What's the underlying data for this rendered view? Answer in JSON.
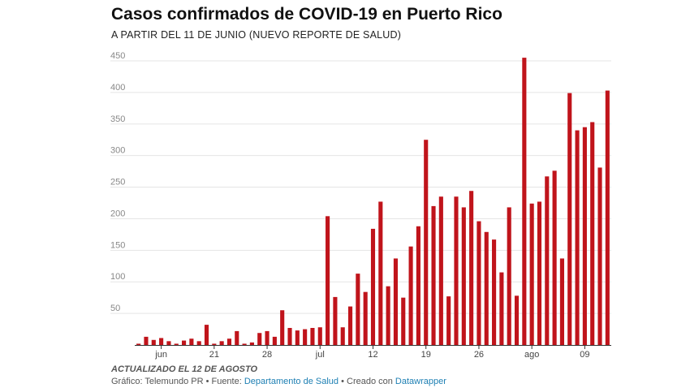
{
  "header": {
    "title": "Casos confirmados de COVID-19 en Puerto Rico",
    "subtitle": "A PARTIR DEL 11 DE JUNIO (NUEVO REPORTE DE SALUD)"
  },
  "footer": {
    "notes": "ACTUALIZADO EL 12 DE AGOSTO",
    "credit_prefix": "Gráfico: Telemundo PR • Fuente: ",
    "source_link": "Departamento de Salud",
    "credit_middle": " • Creado con ",
    "tool_link": "Datawrapper"
  },
  "colors": {
    "bar": "#c0141b",
    "grid": "#e5e5e5",
    "link": "#1d7fb3"
  },
  "chart_data": {
    "type": "bar",
    "title": "Casos confirmados de COVID-19 en Puerto Rico",
    "subtitle": "A PARTIR DEL 11 DE JUNIO (NUEVO REPORTE DE SALUD)",
    "xlabel": "",
    "ylabel": "",
    "ylim": [
      0,
      450
    ],
    "yticks": [
      0,
      50,
      100,
      150,
      200,
      250,
      300,
      350,
      400,
      450
    ],
    "ytick_labels": [
      "",
      "50",
      "100",
      "150",
      "200",
      "250",
      "300",
      "350",
      "400",
      "450"
    ],
    "grid": true,
    "x_tick_labels": [
      {
        "date": "2020-06-14",
        "label": "jun"
      },
      {
        "date": "2020-06-21",
        "label": "21"
      },
      {
        "date": "2020-06-28",
        "label": "28"
      },
      {
        "date": "2020-07-05",
        "label": "jul"
      },
      {
        "date": "2020-07-12",
        "label": "12"
      },
      {
        "date": "2020-07-19",
        "label": "19"
      },
      {
        "date": "2020-07-26",
        "label": "26"
      },
      {
        "date": "2020-08-02",
        "label": "ago"
      },
      {
        "date": "2020-08-09",
        "label": "09"
      }
    ],
    "dates": [
      "2020-06-11",
      "2020-06-12",
      "2020-06-13",
      "2020-06-14",
      "2020-06-15",
      "2020-06-16",
      "2020-06-17",
      "2020-06-18",
      "2020-06-19",
      "2020-06-20",
      "2020-06-21",
      "2020-06-22",
      "2020-06-23",
      "2020-06-24",
      "2020-06-25",
      "2020-06-26",
      "2020-06-27",
      "2020-06-28",
      "2020-06-29",
      "2020-06-30",
      "2020-07-01",
      "2020-07-02",
      "2020-07-03",
      "2020-07-04",
      "2020-07-05",
      "2020-07-06",
      "2020-07-07",
      "2020-07-08",
      "2020-07-09",
      "2020-07-10",
      "2020-07-11",
      "2020-07-12",
      "2020-07-13",
      "2020-07-14",
      "2020-07-15",
      "2020-07-16",
      "2020-07-17",
      "2020-07-18",
      "2020-07-19",
      "2020-07-20",
      "2020-07-21",
      "2020-07-22",
      "2020-07-23",
      "2020-07-24",
      "2020-07-25",
      "2020-07-26",
      "2020-07-27",
      "2020-07-28",
      "2020-07-29",
      "2020-07-30",
      "2020-07-31",
      "2020-08-01",
      "2020-08-02",
      "2020-08-03",
      "2020-08-04",
      "2020-08-05",
      "2020-08-06",
      "2020-08-07",
      "2020-08-08",
      "2020-08-09",
      "2020-08-10",
      "2020-08-11",
      "2020-08-12"
    ],
    "values": [
      2,
      13,
      8,
      11,
      6,
      2,
      7,
      10,
      6,
      32,
      2,
      6,
      10,
      22,
      2,
      4,
      19,
      22,
      13,
      55,
      27,
      23,
      25,
      27,
      28,
      204,
      76,
      28,
      61,
      113,
      84,
      184,
      227,
      93,
      137,
      75,
      156,
      188,
      325,
      220,
      235,
      77,
      235,
      218,
      244,
      196,
      179,
      167,
      115,
      218,
      78,
      455,
      224,
      227,
      267,
      276,
      137,
      399,
      340,
      345,
      353,
      281,
      403
    ]
  }
}
